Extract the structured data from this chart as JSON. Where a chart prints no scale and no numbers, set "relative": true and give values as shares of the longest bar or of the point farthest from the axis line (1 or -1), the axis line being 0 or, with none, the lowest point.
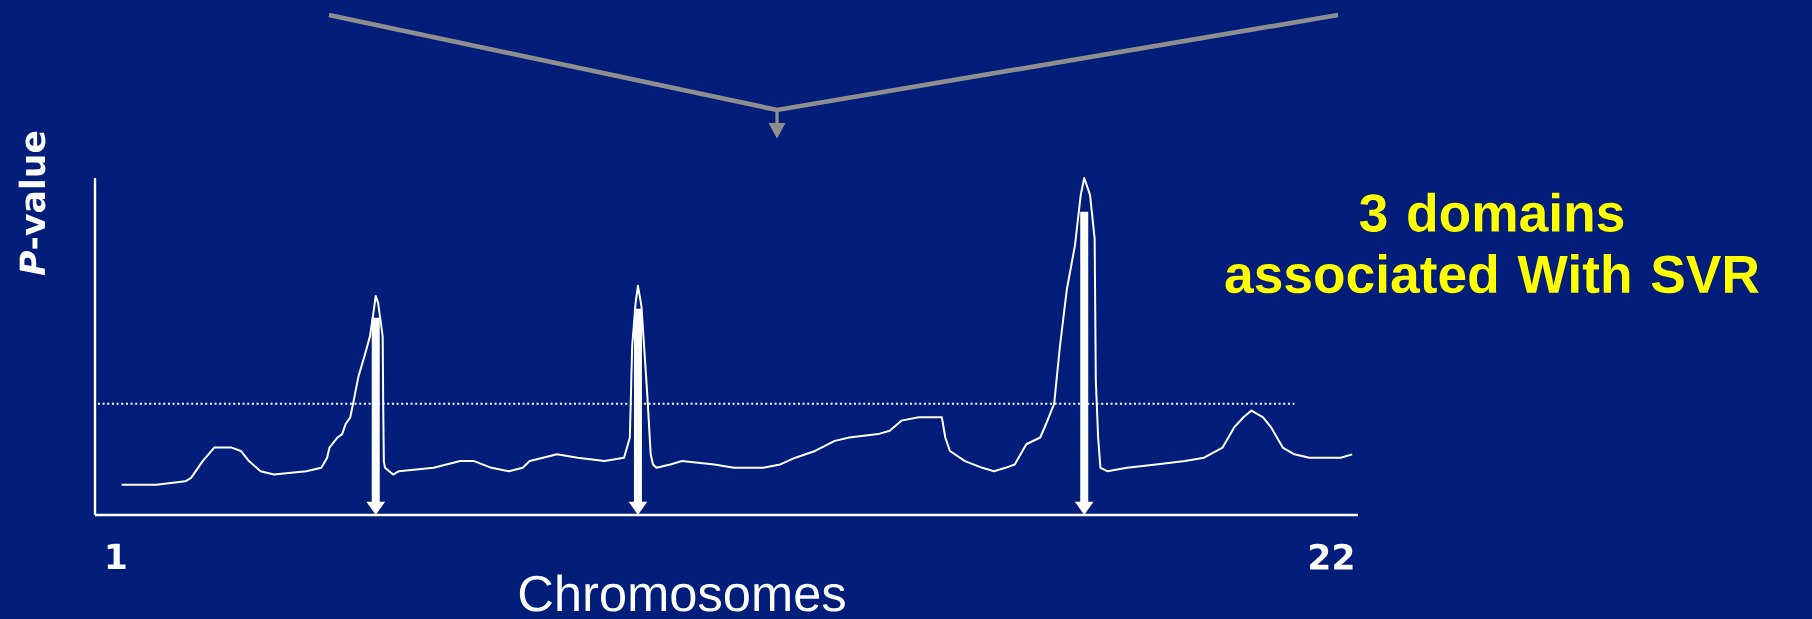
{
  "chart_data": {
    "type": "line",
    "relative": true,
    "xlabel": "Chromosomes",
    "ylabel": "*P*-value",
    "xlim": [
      0.64,
      22.46
    ],
    "xticks": [
      1,
      22
    ],
    "marker": "none",
    "line_style": "solid",
    "x": [
      1.1,
      1.7,
      2.2,
      2.3,
      2.5,
      2.7,
      3.0,
      3.16,
      3.3,
      3.5,
      3.73,
      4.29,
      4.55,
      4.65,
      4.69,
      4.83,
      4.91,
      4.97,
      5.05,
      5.11,
      5.19,
      5.31,
      5.39,
      5.45,
      5.49,
      5.53,
      5.61,
      5.62,
      5.63,
      5.65,
      5.79,
      5.89,
      6.49,
      6.95,
      7.05,
      7.19,
      7.49,
      7.79,
      8.03,
      8.15,
      8.38,
      8.62,
      8.98,
      9.44,
      9.78,
      9.88,
      9.92,
      9.98,
      10.02,
      10.08,
      10.18,
      10.24,
      10.28,
      10.34,
      10.58,
      10.78,
      11.34,
      11.68,
      12.18,
      12.48,
      12.74,
      13.08,
      13.42,
      13.67,
      14.17,
      14.37,
      14.57,
      14.87,
      15.17,
      15.27,
      15.33,
      15.41,
      15.67,
      15.97,
      16.17,
      16.37,
      16.53,
      16.63,
      16.73,
      16.97,
      17.07,
      17.21,
      17.31,
      17.43,
      17.57,
      17.67,
      17.73,
      17.83,
      17.91,
      17.93,
      17.97,
      18.01,
      18.13,
      18.47,
      18.97,
      19.47,
      19.8,
      20.12,
      20.32,
      20.48,
      20.62,
      20.82,
      20.96,
      21.16,
      21.36,
      21.62,
      22.16,
      22.36
    ],
    "series": [
      {
        "color": "#ffffff",
        "values": [
          0.09,
          0.09,
          0.1,
          0.11,
          0.16,
          0.2,
          0.2,
          0.19,
          0.16,
          0.13,
          0.12,
          0.13,
          0.14,
          0.17,
          0.2,
          0.23,
          0.24,
          0.27,
          0.29,
          0.34,
          0.41,
          0.48,
          0.53,
          0.6,
          0.65,
          0.63,
          0.53,
          0.31,
          0.16,
          0.14,
          0.12,
          0.13,
          0.14,
          0.16,
          0.16,
          0.16,
          0.14,
          0.13,
          0.14,
          0.16,
          0.17,
          0.18,
          0.17,
          0.16,
          0.17,
          0.23,
          0.5,
          0.63,
          0.68,
          0.62,
          0.36,
          0.18,
          0.15,
          0.14,
          0.15,
          0.16,
          0.15,
          0.14,
          0.14,
          0.15,
          0.17,
          0.19,
          0.22,
          0.23,
          0.24,
          0.25,
          0.28,
          0.29,
          0.29,
          0.29,
          0.23,
          0.19,
          0.16,
          0.14,
          0.13,
          0.14,
          0.15,
          0.18,
          0.21,
          0.23,
          0.27,
          0.33,
          0.5,
          0.67,
          0.8,
          0.95,
          1,
          0.95,
          0.82,
          0.4,
          0.23,
          0.14,
          0.13,
          0.14,
          0.15,
          0.16,
          0.17,
          0.2,
          0.26,
          0.29,
          0.31,
          0.29,
          0.26,
          0.2,
          0.18,
          0.17,
          0.17,
          0.18
        ]
      }
    ],
    "ref_lines": [
      {
        "axis": "y",
        "value": 0.33,
        "line_style": "dotted",
        "color": "#ffffff"
      }
    ],
    "annotations": [
      "3 domains associated With SVR"
    ]
  }
}
